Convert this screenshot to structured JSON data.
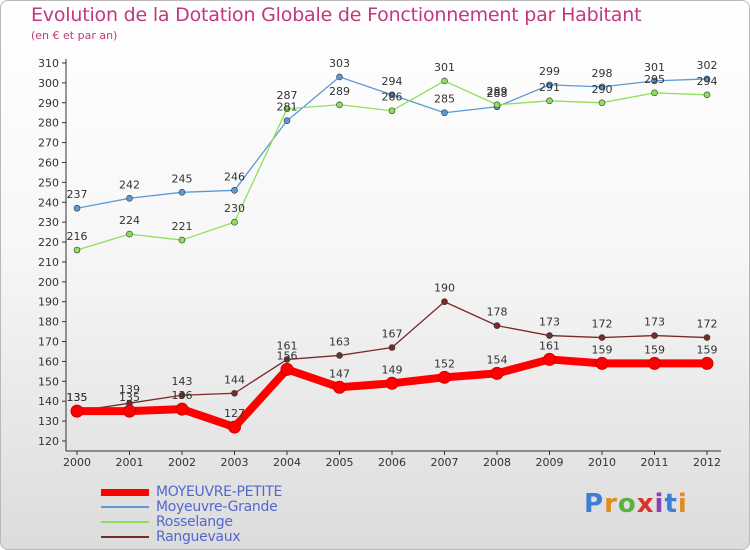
{
  "chart_data": {
    "type": "line",
    "title": "Evolution de la Dotation Globale de Fonctionnement par Habitant",
    "subtitle": "(en € et par an)",
    "xlabel": "",
    "ylabel": "",
    "x": [
      "2000",
      "2001",
      "2002",
      "2003",
      "2004",
      "2005",
      "2006",
      "2007",
      "2008",
      "2009",
      "2010",
      "2011",
      "2012"
    ],
    "ylim": [
      120,
      310
    ],
    "yticks": [
      120,
      130,
      140,
      150,
      160,
      170,
      180,
      190,
      200,
      210,
      220,
      230,
      240,
      250,
      260,
      270,
      280,
      290,
      300,
      310
    ],
    "grid": "none",
    "series": [
      {
        "name": "MOYEUVRE-PETITE",
        "color": "#ff0000",
        "values": [
          135,
          135,
          136,
          127,
          156,
          147,
          149,
          152,
          154,
          161,
          159,
          159,
          159
        ]
      },
      {
        "name": "Moyeuvre-Grande",
        "color": "#5b9bd5",
        "values": [
          237,
          242,
          245,
          246,
          281,
          303,
          294,
          285,
          288,
          299,
          298,
          301,
          302
        ]
      },
      {
        "name": "Rosselange",
        "color": "#8ee05a",
        "values": [
          216,
          224,
          221,
          230,
          287,
          289,
          286,
          301,
          289,
          291,
          290,
          295,
          294
        ]
      },
      {
        "name": "Ranguevaux",
        "color": "#7b2a2a",
        "values": [
          135,
          139,
          143,
          144,
          161,
          163,
          167,
          190,
          178,
          173,
          172,
          173,
          172
        ]
      }
    ]
  },
  "logo": {
    "text": "Proxiti",
    "letters": [
      "P",
      "r",
      "o",
      "x",
      "i",
      "t",
      "i"
    ],
    "colors": [
      "#3c7fd6",
      "#e58a1f",
      "#58b23f",
      "#d8342c",
      "#8e3fb1",
      "#3c7fd6",
      "#e58a1f"
    ]
  }
}
